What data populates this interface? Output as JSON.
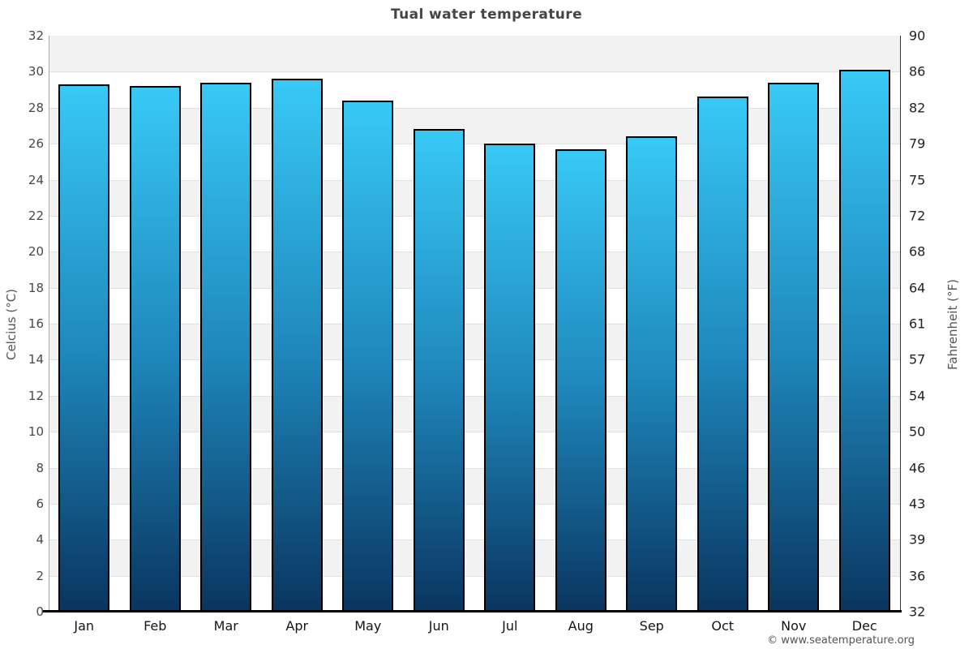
{
  "page": {
    "title": "Tual water temperature"
  },
  "footer": {
    "copyright": "© www.seatemperature.org"
  },
  "chart_data": {
    "type": "bar",
    "title": "Tual water temperature",
    "categories": [
      "Jan",
      "Feb",
      "Mar",
      "Apr",
      "May",
      "Jun",
      "Jul",
      "Aug",
      "Sep",
      "Oct",
      "Nov",
      "Dec"
    ],
    "values": [
      29.3,
      29.2,
      29.4,
      29.6,
      28.4,
      26.8,
      26.0,
      25.7,
      26.4,
      28.6,
      29.4,
      30.1
    ],
    "xlabel": "",
    "ylabel_left": "Celcius (°C)",
    "ylabel_right": "Fahrenheit (°F)",
    "ylim": [
      0,
      32
    ],
    "yticks_left": [
      32,
      30,
      28,
      26,
      24,
      22,
      20,
      18,
      16,
      14,
      12,
      10,
      8,
      6,
      4,
      2,
      0
    ],
    "yticks_right": [
      90,
      86,
      82,
      79,
      75,
      72,
      68,
      64,
      61,
      57,
      54,
      50,
      46,
      43,
      39,
      36,
      32
    ],
    "legend": false,
    "grid": "horizontal-bands",
    "band_colors": [
      "#f2f2f2",
      "#ffffff"
    ],
    "gridline_color": "#e0e0e0",
    "bar_gradient": [
      "#38c9f6",
      "#1e86ba",
      "#0a3560"
    ],
    "bar_border_color": "#000000"
  }
}
